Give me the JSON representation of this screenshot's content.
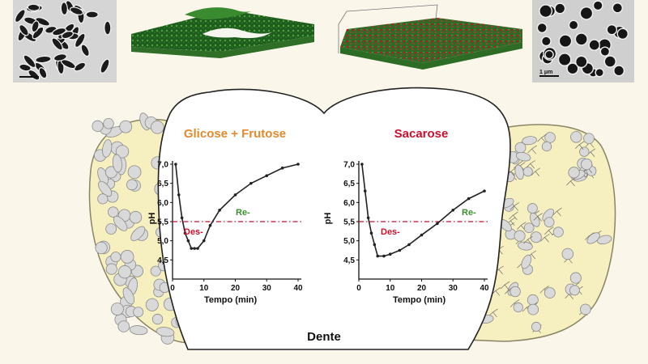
{
  "tooth_label": "Dente",
  "panels": {
    "micrograph_scale_label": "1 μm"
  },
  "colors": {
    "background": "#fbf6ea",
    "plaque_fill": "#f6efbf",
    "plaque_stroke": "#8a8466",
    "cell_fill": "#d9d9d9",
    "title_left": "#e28a2b",
    "title_right": "#c8102e",
    "des_label": "#c8102e",
    "re_label": "#3b8f2e",
    "threshold_line": "#c8102e",
    "curve": "#222222",
    "biofilm_green": "#2f7a2a",
    "biofilm_red": "#c0142c"
  },
  "chart_data": [
    {
      "type": "line",
      "title": "Glicose + Frutose",
      "xlabel": "Tempo (min)",
      "ylabel": "pH",
      "xlim": [
        0,
        40
      ],
      "ylim": [
        4.0,
        7.0
      ],
      "x_ticks": [
        "0",
        "10",
        "20",
        "30",
        "40"
      ],
      "y_ticks": [
        "7,0",
        "6,5",
        "6,0",
        "5,5",
        "5,0",
        "4,5"
      ],
      "threshold": 5.5,
      "annotations": [
        "Des-",
        "Re-"
      ],
      "series": [
        {
          "x": [
            1,
            2,
            3,
            4,
            5,
            6,
            7,
            8,
            10,
            12,
            15,
            20,
            25,
            30,
            35,
            40
          ],
          "values": [
            7.0,
            6.2,
            5.6,
            5.2,
            5.0,
            4.8,
            4.8,
            4.8,
            5.0,
            5.4,
            5.8,
            6.2,
            6.5,
            6.7,
            6.9,
            7.0
          ]
        }
      ]
    },
    {
      "type": "line",
      "title": "Sacarose",
      "xlabel": "Tempo (min)",
      "ylabel": "pH",
      "xlim": [
        0,
        40
      ],
      "ylim": [
        4.0,
        7.0
      ],
      "x_ticks": [
        "0",
        "10",
        "20",
        "30",
        "40"
      ],
      "y_ticks": [
        "7,0",
        "6,5",
        "6,0",
        "5,5",
        "5,0",
        "4,5"
      ],
      "threshold": 5.5,
      "annotations": [
        "Des-",
        "Re-"
      ],
      "series": [
        {
          "x": [
            1,
            2,
            3,
            4,
            5,
            6,
            8,
            10,
            13,
            16,
            20,
            25,
            30,
            35,
            40
          ],
          "values": [
            7.0,
            6.3,
            5.6,
            5.2,
            4.9,
            4.6,
            4.6,
            4.65,
            4.75,
            4.9,
            5.15,
            5.45,
            5.8,
            6.1,
            6.3
          ]
        }
      ]
    }
  ]
}
